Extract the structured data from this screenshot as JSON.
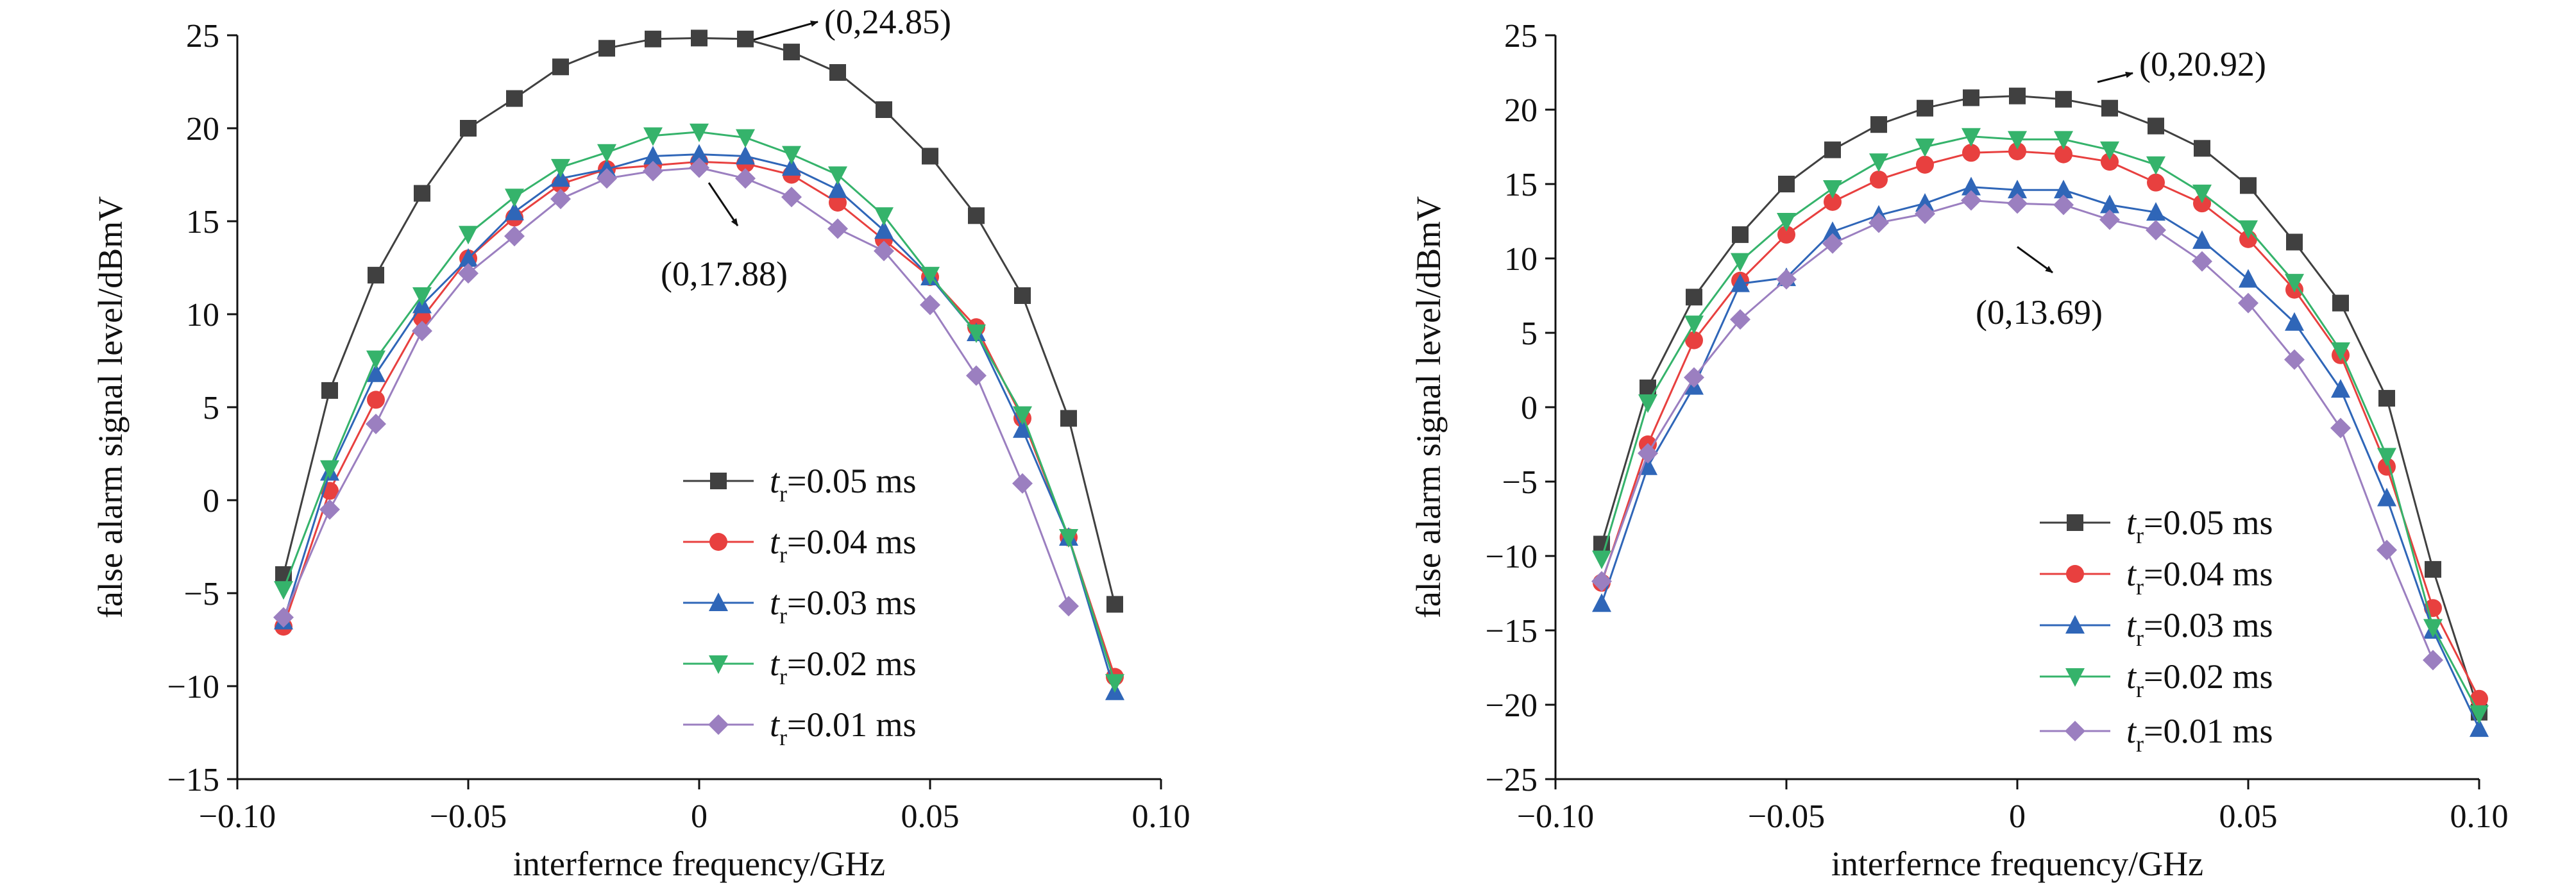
{
  "chart_data": [
    {
      "type": "line",
      "xlabel": "interfernce frequency/GHz",
      "ylabel": "false alarm signal level/dBmV",
      "xlim": [
        -0.1,
        0.1
      ],
      "ylim": [
        -15,
        25
      ],
      "x_ticks": [
        -0.1,
        -0.05,
        0,
        0.05,
        0.1
      ],
      "x_tick_labels": [
        "−0.10",
        "−0.05",
        "0",
        "0.05",
        "0.10"
      ],
      "y_ticks": [
        -15,
        -10,
        -5,
        0,
        5,
        10,
        15,
        20,
        25
      ],
      "y_tick_labels": [
        "−15",
        "−10",
        "−5",
        "0",
        "5",
        "10",
        "15",
        "20",
        "25"
      ],
      "grid": false,
      "legend_position": "bottom-right",
      "series": [
        {
          "legend": {
            "var": "t",
            "sub": "r",
            "rest": "=0.05 ms"
          },
          "color": "#404040",
          "marker": "square",
          "x": [
            -0.09,
            -0.08,
            -0.07,
            -0.06,
            -0.05,
            -0.04,
            -0.03,
            -0.02,
            -0.01,
            0,
            0.01,
            0.02,
            0.03,
            0.04,
            0.05,
            0.06,
            0.07,
            0.08,
            0.09
          ],
          "y": [
            -4.0,
            5.9,
            12.1,
            16.5,
            20.0,
            21.6,
            23.3,
            24.3,
            24.8,
            24.85,
            24.8,
            24.1,
            23.0,
            21.0,
            18.5,
            15.3,
            11.0,
            4.4,
            -5.6
          ]
        },
        {
          "legend": {
            "var": "t",
            "sub": "r",
            "rest": "=0.04 ms"
          },
          "color": "#e8403f",
          "marker": "circle",
          "x": [
            -0.09,
            -0.08,
            -0.07,
            -0.06,
            -0.05,
            -0.04,
            -0.03,
            -0.02,
            -0.01,
            0,
            0.01,
            0.02,
            0.03,
            0.04,
            0.05,
            0.06,
            0.07,
            0.08,
            0.09
          ],
          "y": [
            -6.8,
            0.5,
            5.4,
            9.8,
            13.0,
            15.2,
            17.0,
            17.8,
            18.0,
            18.2,
            18.1,
            17.5,
            16.0,
            14.0,
            12.0,
            9.3,
            4.4,
            -2.0,
            -9.5
          ]
        },
        {
          "legend": {
            "var": "t",
            "sub": "r",
            "rest": "=0.03 ms"
          },
          "color": "#2f66b8",
          "marker": "triangle-up",
          "x": [
            -0.09,
            -0.08,
            -0.07,
            -0.06,
            -0.05,
            -0.04,
            -0.03,
            -0.02,
            -0.01,
            0,
            0.01,
            0.02,
            0.03,
            0.04,
            0.05,
            0.06,
            0.07,
            0.08,
            0.09
          ],
          "y": [
            -6.5,
            1.5,
            6.8,
            10.5,
            13.0,
            15.5,
            17.3,
            17.8,
            18.5,
            18.6,
            18.5,
            17.9,
            16.7,
            14.5,
            12.0,
            9.0,
            3.8,
            -2.0,
            -10.3
          ]
        },
        {
          "legend": {
            "var": "t",
            "sub": "r",
            "rest": "=0.02 ms"
          },
          "color": "#35b36b",
          "marker": "triangle-down",
          "x": [
            -0.09,
            -0.08,
            -0.07,
            -0.06,
            -0.05,
            -0.04,
            -0.03,
            -0.02,
            -0.01,
            0,
            0.01,
            0.02,
            0.03,
            0.04,
            0.05,
            0.06,
            0.07,
            0.08,
            0.09
          ],
          "y": [
            -4.8,
            1.7,
            7.6,
            11.0,
            14.3,
            16.3,
            17.9,
            18.7,
            19.6,
            19.8,
            19.5,
            18.6,
            17.5,
            15.3,
            12.1,
            9.0,
            4.6,
            -2.0,
            -9.8
          ]
        },
        {
          "legend": {
            "var": "t",
            "sub": "r",
            "rest": "=0.01 ms"
          },
          "color": "#9b7fc0",
          "marker": "diamond",
          "x": [
            -0.09,
            -0.08,
            -0.07,
            -0.06,
            -0.05,
            -0.04,
            -0.03,
            -0.02,
            -0.01,
            0,
            0.01,
            0.02,
            0.03,
            0.04,
            0.05,
            0.06,
            0.07,
            0.08
          ],
          "y": [
            -6.3,
            -0.5,
            4.1,
            9.1,
            12.2,
            14.2,
            16.2,
            17.3,
            17.7,
            17.88,
            17.3,
            16.3,
            14.6,
            13.4,
            10.5,
            6.7,
            0.9,
            -5.7
          ]
        }
      ],
      "annotations": [
        {
          "text": "(0,24.85)",
          "x": 0,
          "y": 24.85
        },
        {
          "text": "(0,17.88)",
          "x": 0,
          "y": 17.88
        }
      ]
    },
    {
      "type": "line",
      "xlabel": "interfernce frequency/GHz",
      "ylabel": "false alarm signal level/dBmV",
      "xlim": [
        -0.1,
        0.1
      ],
      "ylim": [
        -25,
        25
      ],
      "x_ticks": [
        -0.1,
        -0.05,
        0,
        0.05,
        0.1
      ],
      "x_tick_labels": [
        "−0.10",
        "−0.05",
        "0",
        "0.05",
        "0.10"
      ],
      "y_ticks": [
        -25,
        -20,
        -15,
        -10,
        -5,
        0,
        5,
        10,
        15,
        20,
        25
      ],
      "y_tick_labels": [
        "−25",
        "−20",
        "−15",
        "−10",
        "−5",
        "0",
        "5",
        "10",
        "15",
        "20",
        "25"
      ],
      "grid": false,
      "legend_position": "bottom-right",
      "series": [
        {
          "legend": {
            "var": "t",
            "sub": "r",
            "rest": "=0.05 ms"
          },
          "color": "#404040",
          "marker": "square",
          "x": [
            -0.09,
            -0.08,
            -0.07,
            -0.06,
            -0.05,
            -0.04,
            -0.03,
            -0.02,
            -0.01,
            0,
            0.01,
            0.02,
            0.03,
            0.04,
            0.05,
            0.06,
            0.07,
            0.08,
            0.09,
            0.1
          ],
          "y": [
            -9.2,
            1.3,
            7.4,
            11.6,
            15.0,
            17.3,
            19.0,
            20.1,
            20.8,
            20.92,
            20.7,
            20.1,
            18.9,
            17.4,
            14.9,
            11.1,
            7.0,
            0.6,
            -10.9,
            -20.5
          ]
        },
        {
          "legend": {
            "var": "t",
            "sub": "r",
            "rest": "=0.04 ms"
          },
          "color": "#e8403f",
          "marker": "circle",
          "x": [
            -0.09,
            -0.08,
            -0.07,
            -0.06,
            -0.05,
            -0.04,
            -0.03,
            -0.02,
            -0.01,
            0,
            0.01,
            0.02,
            0.03,
            0.04,
            0.05,
            0.06,
            0.07,
            0.08,
            0.09,
            0.1
          ],
          "y": [
            -11.8,
            -2.5,
            4.5,
            8.5,
            11.6,
            13.8,
            15.3,
            16.3,
            17.1,
            17.2,
            17.0,
            16.5,
            15.1,
            13.7,
            11.3,
            7.9,
            3.5,
            -4.0,
            -13.5,
            -19.6
          ]
        },
        {
          "legend": {
            "var": "t",
            "sub": "r",
            "rest": "=0.03 ms"
          },
          "color": "#2f66b8",
          "marker": "triangle-up",
          "x": [
            -0.09,
            -0.08,
            -0.07,
            -0.06,
            -0.05,
            -0.04,
            -0.03,
            -0.02,
            -0.01,
            0,
            0.01,
            0.02,
            0.03,
            0.04,
            0.05,
            0.06,
            0.07,
            0.08,
            0.09,
            0.1
          ],
          "y": [
            -13.2,
            -4.0,
            1.4,
            8.3,
            8.7,
            11.8,
            12.9,
            13.7,
            14.8,
            14.6,
            14.6,
            13.6,
            13.1,
            11.2,
            8.6,
            5.7,
            1.2,
            -6.1,
            -15.0,
            -21.6
          ]
        },
        {
          "legend": {
            "var": "t",
            "sub": "r",
            "rest": "=0.02 ms"
          },
          "color": "#35b36b",
          "marker": "triangle-down",
          "x": [
            -0.09,
            -0.08,
            -0.07,
            -0.06,
            -0.05,
            -0.04,
            -0.03,
            -0.02,
            -0.01,
            0,
            0.01,
            0.02,
            0.03,
            0.04,
            0.05,
            0.06,
            0.07,
            0.08,
            0.09,
            0.1
          ],
          "y": [
            -10.2,
            0.3,
            5.6,
            9.8,
            12.5,
            14.7,
            16.5,
            17.5,
            18.2,
            18.0,
            18.0,
            17.3,
            16.3,
            14.4,
            12.0,
            8.4,
            3.8,
            -3.3,
            -14.8,
            -20.6
          ]
        },
        {
          "legend": {
            "var": "t",
            "sub": "r",
            "rest": "=0.01 ms"
          },
          "color": "#9b7fc0",
          "marker": "diamond",
          "x": [
            -0.09,
            -0.08,
            -0.07,
            -0.06,
            -0.05,
            -0.04,
            -0.03,
            -0.02,
            -0.01,
            0,
            0.01,
            0.02,
            0.03,
            0.04,
            0.05,
            0.06,
            0.07,
            0.08,
            0.09
          ],
          "y": [
            -11.7,
            -3.1,
            2.0,
            5.9,
            8.6,
            11.0,
            12.4,
            13.0,
            13.9,
            13.69,
            13.6,
            12.6,
            11.9,
            9.8,
            7.0,
            3.2,
            -1.4,
            -9.6,
            -17.0
          ]
        }
      ],
      "annotations": [
        {
          "text": "(0,20.92)",
          "x": 0,
          "y": 20.92
        },
        {
          "text": "(0,13.69)",
          "x": 0,
          "y": 13.69
        }
      ]
    }
  ]
}
